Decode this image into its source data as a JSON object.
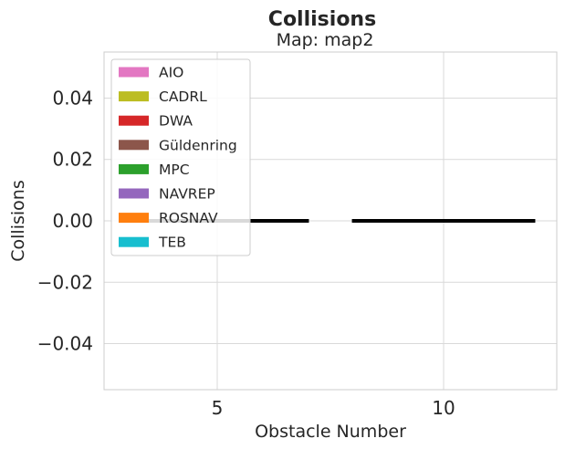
{
  "chart_data": {
    "type": "bar",
    "title": "Collisions",
    "subtitle": "Map: map2",
    "xlabel": "Obstacle Number",
    "ylabel": "Collisions",
    "categories": [
      "5",
      "10"
    ],
    "ylim": [
      -0.055,
      0.055
    ],
    "yticks": [
      -0.04,
      -0.02,
      0.0,
      0.02,
      0.04
    ],
    "ytick_labels": [
      "−0.04",
      "−0.02",
      "0.00",
      "0.02",
      "0.04"
    ],
    "grid": true,
    "legend_position": "upper-left",
    "series": [
      {
        "name": "AIO",
        "color": "#e377c2",
        "values": [
          0,
          0
        ]
      },
      {
        "name": "CADRL",
        "color": "#bcbd22",
        "values": [
          0,
          0
        ]
      },
      {
        "name": "DWA",
        "color": "#d62728",
        "values": [
          0,
          0
        ]
      },
      {
        "name": "Güldenring",
        "color": "#8c564b",
        "values": [
          0,
          0
        ]
      },
      {
        "name": "MPC",
        "color": "#2ca02c",
        "values": [
          0,
          0
        ]
      },
      {
        "name": "NAVREP",
        "color": "#9467bd",
        "values": [
          0,
          0
        ]
      },
      {
        "name": "ROSNAV",
        "color": "#ff7f0e",
        "values": [
          0,
          0
        ]
      },
      {
        "name": "TEB",
        "color": "#17becf",
        "values": [
          0,
          0
        ]
      }
    ]
  }
}
